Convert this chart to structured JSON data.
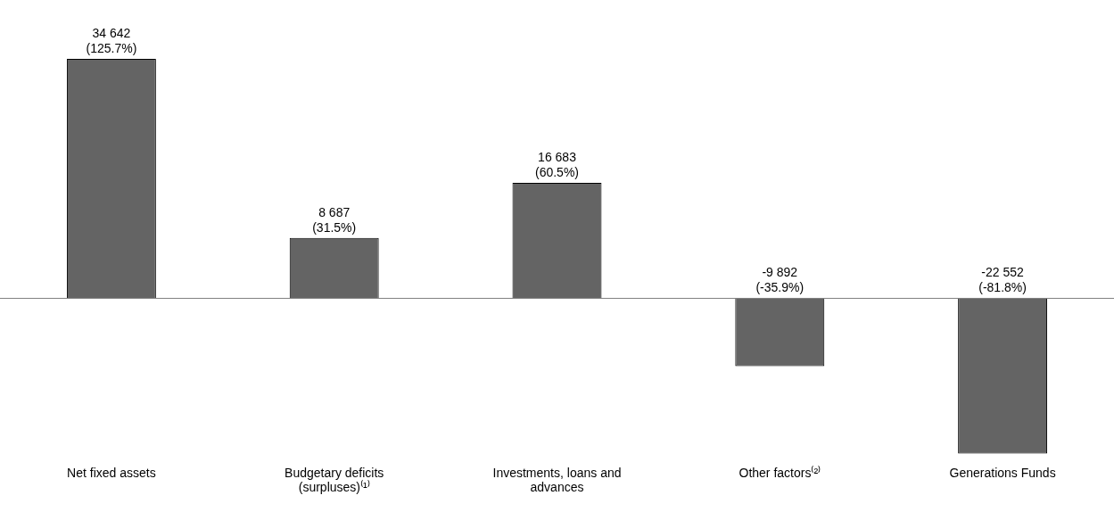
{
  "chart_data": {
    "type": "bar",
    "categories": [
      "Net fixed assets",
      "Budgetary deficits\n(surpluses)⁽¹⁾",
      "Investments, loans and\nadvances",
      "Other factors⁽²⁾",
      "Generations Funds"
    ],
    "values": [
      34642,
      8687,
      16683,
      -9892,
      -22552
    ],
    "value_labels": [
      "34 642\n(125.7%)",
      "8 687\n(31.5%)",
      "16 683\n(60.5%)",
      "-9 892\n(-35.9%)",
      "-22 552\n(-81.8%)"
    ],
    "color": "#646464"
  }
}
